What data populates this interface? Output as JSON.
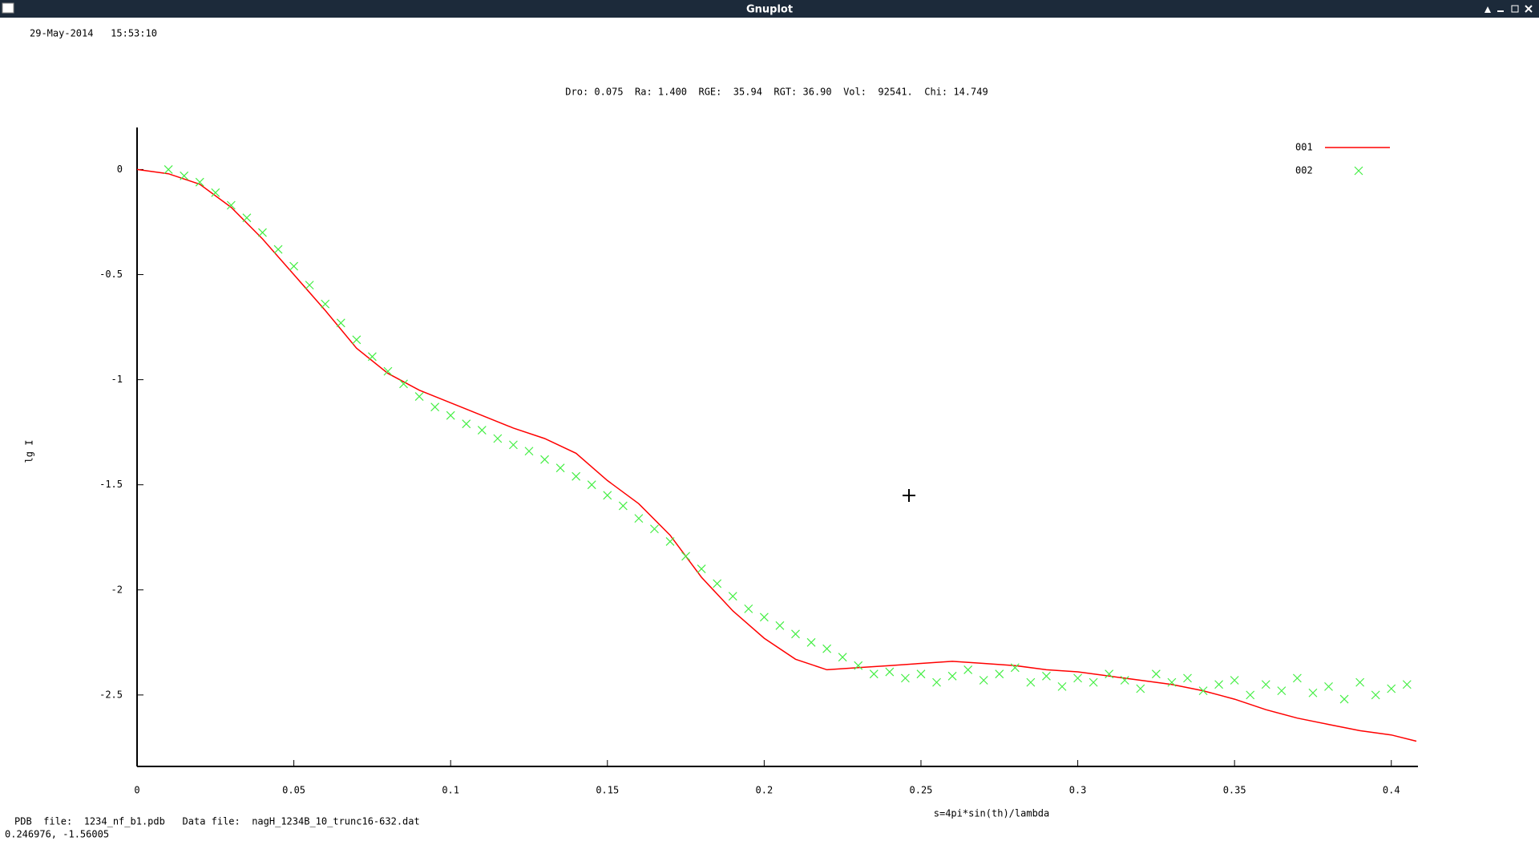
{
  "window": {
    "title": "Gnuplot",
    "status": "0.246976, -1.56005"
  },
  "chart_data": {
    "type": "line",
    "date": "29-May-2014   15:53:10",
    "title": "Dro: 0.075  Ra: 1.400  RGE:  35.94  RGT: 36.90  Vol:  92541.  Chi: 14.749",
    "x_label": "s=4pi*sin(th)/lambda",
    "y_label": "lg I",
    "footer": "PDB  file:  1234_nf_b1.pdb   Data file:  nagH_1234B_10_trunc16-632.dat",
    "xlim": [
      0,
      0.4085
    ],
    "ylim": [
      -2.84,
      0.2
    ],
    "xticks": [
      0,
      0.05,
      0.1,
      0.15,
      0.2,
      0.25,
      0.3,
      0.35,
      0.4
    ],
    "yticks": [
      0,
      -0.5,
      -1,
      -1.5,
      -2,
      -2.5
    ],
    "legend": "top-right",
    "series": [
      {
        "name": "001",
        "color": "#ff0000",
        "style": "line",
        "x": [
          0,
          0.01,
          0.02,
          0.03,
          0.04,
          0.05,
          0.06,
          0.07,
          0.08,
          0.09,
          0.1,
          0.11,
          0.12,
          0.13,
          0.14,
          0.15,
          0.16,
          0.17,
          0.18,
          0.19,
          0.2,
          0.21,
          0.22,
          0.23,
          0.24,
          0.25,
          0.26,
          0.27,
          0.28,
          0.29,
          0.3,
          0.31,
          0.32,
          0.33,
          0.34,
          0.35,
          0.36,
          0.37,
          0.38,
          0.39,
          0.4,
          0.408
        ],
        "values": [
          0,
          -0.02,
          -0.07,
          -0.18,
          -0.33,
          -0.5,
          -0.67,
          -0.85,
          -0.97,
          -1.05,
          -1.11,
          -1.17,
          -1.23,
          -1.28,
          -1.35,
          -1.48,
          -1.59,
          -1.74,
          -1.94,
          -2.1,
          -2.23,
          -2.33,
          -2.38,
          -2.37,
          -2.36,
          -2.35,
          -2.34,
          -2.35,
          -2.36,
          -2.38,
          -2.39,
          -2.41,
          -2.43,
          -2.45,
          -2.48,
          -2.52,
          -2.57,
          -2.61,
          -2.64,
          -2.67,
          -2.69,
          -2.72
        ]
      },
      {
        "name": "002",
        "color": "#44ee44",
        "style": "points",
        "x": [
          0.01,
          0.015,
          0.02,
          0.025,
          0.03,
          0.035,
          0.04,
          0.045,
          0.05,
          0.055,
          0.06,
          0.065,
          0.07,
          0.075,
          0.08,
          0.085,
          0.09,
          0.095,
          0.1,
          0.105,
          0.11,
          0.115,
          0.12,
          0.125,
          0.13,
          0.135,
          0.14,
          0.145,
          0.15,
          0.155,
          0.16,
          0.165,
          0.17,
          0.175,
          0.18,
          0.185,
          0.19,
          0.195,
          0.2,
          0.205,
          0.21,
          0.215,
          0.22,
          0.225,
          0.23,
          0.235,
          0.24,
          0.245,
          0.25,
          0.255,
          0.26,
          0.265,
          0.27,
          0.275,
          0.28,
          0.285,
          0.29,
          0.295,
          0.3,
          0.305,
          0.31,
          0.315,
          0.32,
          0.325,
          0.33,
          0.335,
          0.34,
          0.345,
          0.35,
          0.355,
          0.36,
          0.365,
          0.37,
          0.375,
          0.38,
          0.385,
          0.39,
          0.395,
          0.4,
          0.405
        ],
        "values": [
          0,
          -0.03,
          -0.06,
          -0.11,
          -0.17,
          -0.23,
          -0.3,
          -0.38,
          -0.46,
          -0.55,
          -0.64,
          -0.73,
          -0.81,
          -0.89,
          -0.96,
          -1.02,
          -1.08,
          -1.13,
          -1.17,
          -1.21,
          -1.24,
          -1.28,
          -1.31,
          -1.34,
          -1.38,
          -1.42,
          -1.46,
          -1.5,
          -1.55,
          -1.6,
          -1.66,
          -1.71,
          -1.77,
          -1.84,
          -1.9,
          -1.97,
          -2.03,
          -2.09,
          -2.13,
          -2.17,
          -2.21,
          -2.25,
          -2.28,
          -2.32,
          -2.36,
          -2.4,
          -2.39,
          -2.42,
          -2.4,
          -2.44,
          -2.41,
          -2.38,
          -2.43,
          -2.4,
          -2.37,
          -2.44,
          -2.41,
          -2.46,
          -2.42,
          -2.44,
          -2.4,
          -2.43,
          -2.47,
          -2.4,
          -2.44,
          -2.42,
          -2.48,
          -2.45,
          -2.43,
          -2.5,
          -2.45,
          -2.48,
          -2.42,
          -2.49,
          -2.46,
          -2.52,
          -2.44,
          -2.5,
          -2.47,
          -2.45
        ]
      }
    ]
  }
}
